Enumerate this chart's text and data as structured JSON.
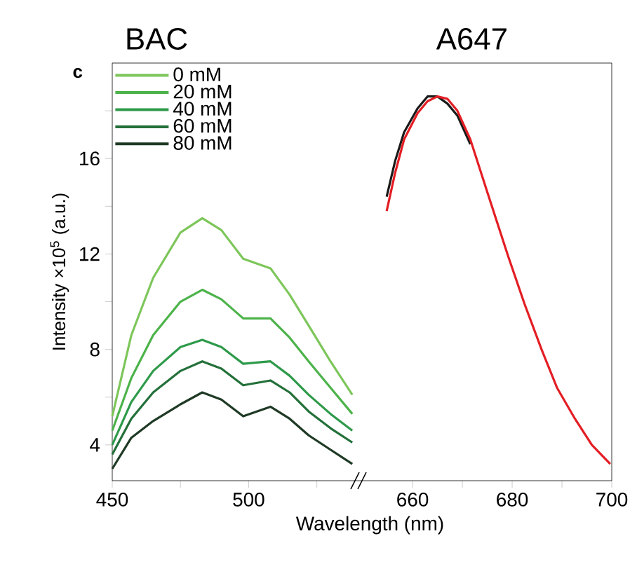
{
  "chart_data": [
    {
      "type": "line",
      "title": "BAC",
      "ylabel": "Intensity ×10$^{5}$ (a.u.)",
      "xlabel": "Wavelength (nm)",
      "annotations": [
        "c"
      ],
      "legend": "top left",
      "xlim": [
        450,
        540
      ],
      "xticks": [
        450,
        500,
        {
          "value": 475,
          "label": null
        },
        {
          "value": 525,
          "label": null
        }
      ],
      "ylim": [
        2.5,
        20
      ],
      "yticks": [
        4,
        8,
        12,
        16,
        {
          "value": 6,
          "label": null
        },
        {
          "value": 10,
          "label": null
        },
        {
          "value": 14,
          "label": null
        },
        {
          "value": 18,
          "label": null
        }
      ],
      "x": [
        450,
        457,
        465,
        475,
        483,
        490,
        498,
        508,
        515,
        522,
        530,
        538
      ],
      "series": [
        {
          "name": "0 mM",
          "color": "#7dc65a",
          "values": [
            5.2,
            8.6,
            11.0,
            12.9,
            13.5,
            13.0,
            11.8,
            11.4,
            10.3,
            9.0,
            7.5,
            6.1
          ]
        },
        {
          "name": "20 mM",
          "color": "#4cb34a",
          "values": [
            4.6,
            6.8,
            8.6,
            10.0,
            10.5,
            10.1,
            9.3,
            9.3,
            8.5,
            7.5,
            6.4,
            5.3
          ]
        },
        {
          "name": "40 mM",
          "color": "#2e9a4a",
          "values": [
            4.0,
            5.8,
            7.1,
            8.1,
            8.4,
            8.1,
            7.4,
            7.5,
            6.9,
            6.1,
            5.3,
            4.6
          ]
        },
        {
          "name": "60 mM",
          "color": "#24703a",
          "values": [
            3.6,
            5.1,
            6.2,
            7.1,
            7.5,
            7.2,
            6.5,
            6.7,
            6.2,
            5.4,
            4.7,
            4.1
          ]
        },
        {
          "name": "80 mM",
          "color": "#1f3a25",
          "values": [
            3.0,
            4.3,
            5.0,
            5.7,
            6.2,
            5.9,
            5.2,
            5.6,
            5.1,
            4.4,
            3.8,
            3.2
          ]
        }
      ]
    },
    {
      "type": "line",
      "title": "A647",
      "tick_labels": "x",
      "xlim": [
        649,
        700
      ],
      "xticks": [
        660,
        680,
        700,
        {
          "value": 670,
          "label": null
        },
        {
          "value": 690,
          "label": null
        }
      ],
      "ylim": [
        2.5,
        20
      ],
      "series": [
        {
          "color": "#1a1a1a",
          "x": [
            654.8,
            656.5,
            658.3,
            661,
            663,
            665,
            667,
            669,
            671.6
          ],
          "values": [
            14.4,
            15.9,
            17.1,
            18.1,
            18.6,
            18.6,
            18.3,
            17.8,
            16.6
          ]
        },
        {
          "color": "#e31e24",
          "x": [
            654.8,
            656.5,
            658.3,
            661,
            663,
            665,
            667,
            669,
            671.6,
            675,
            679.2,
            682.5,
            685.9,
            689,
            692.6,
            696,
            699.7
          ],
          "values": [
            13.8,
            15.4,
            16.8,
            17.9,
            18.4,
            18.6,
            18.5,
            18.0,
            16.8,
            14.6,
            11.9,
            9.9,
            8.0,
            6.4,
            5.1,
            4.0,
            3.2
          ]
        }
      ]
    }
  ]
}
